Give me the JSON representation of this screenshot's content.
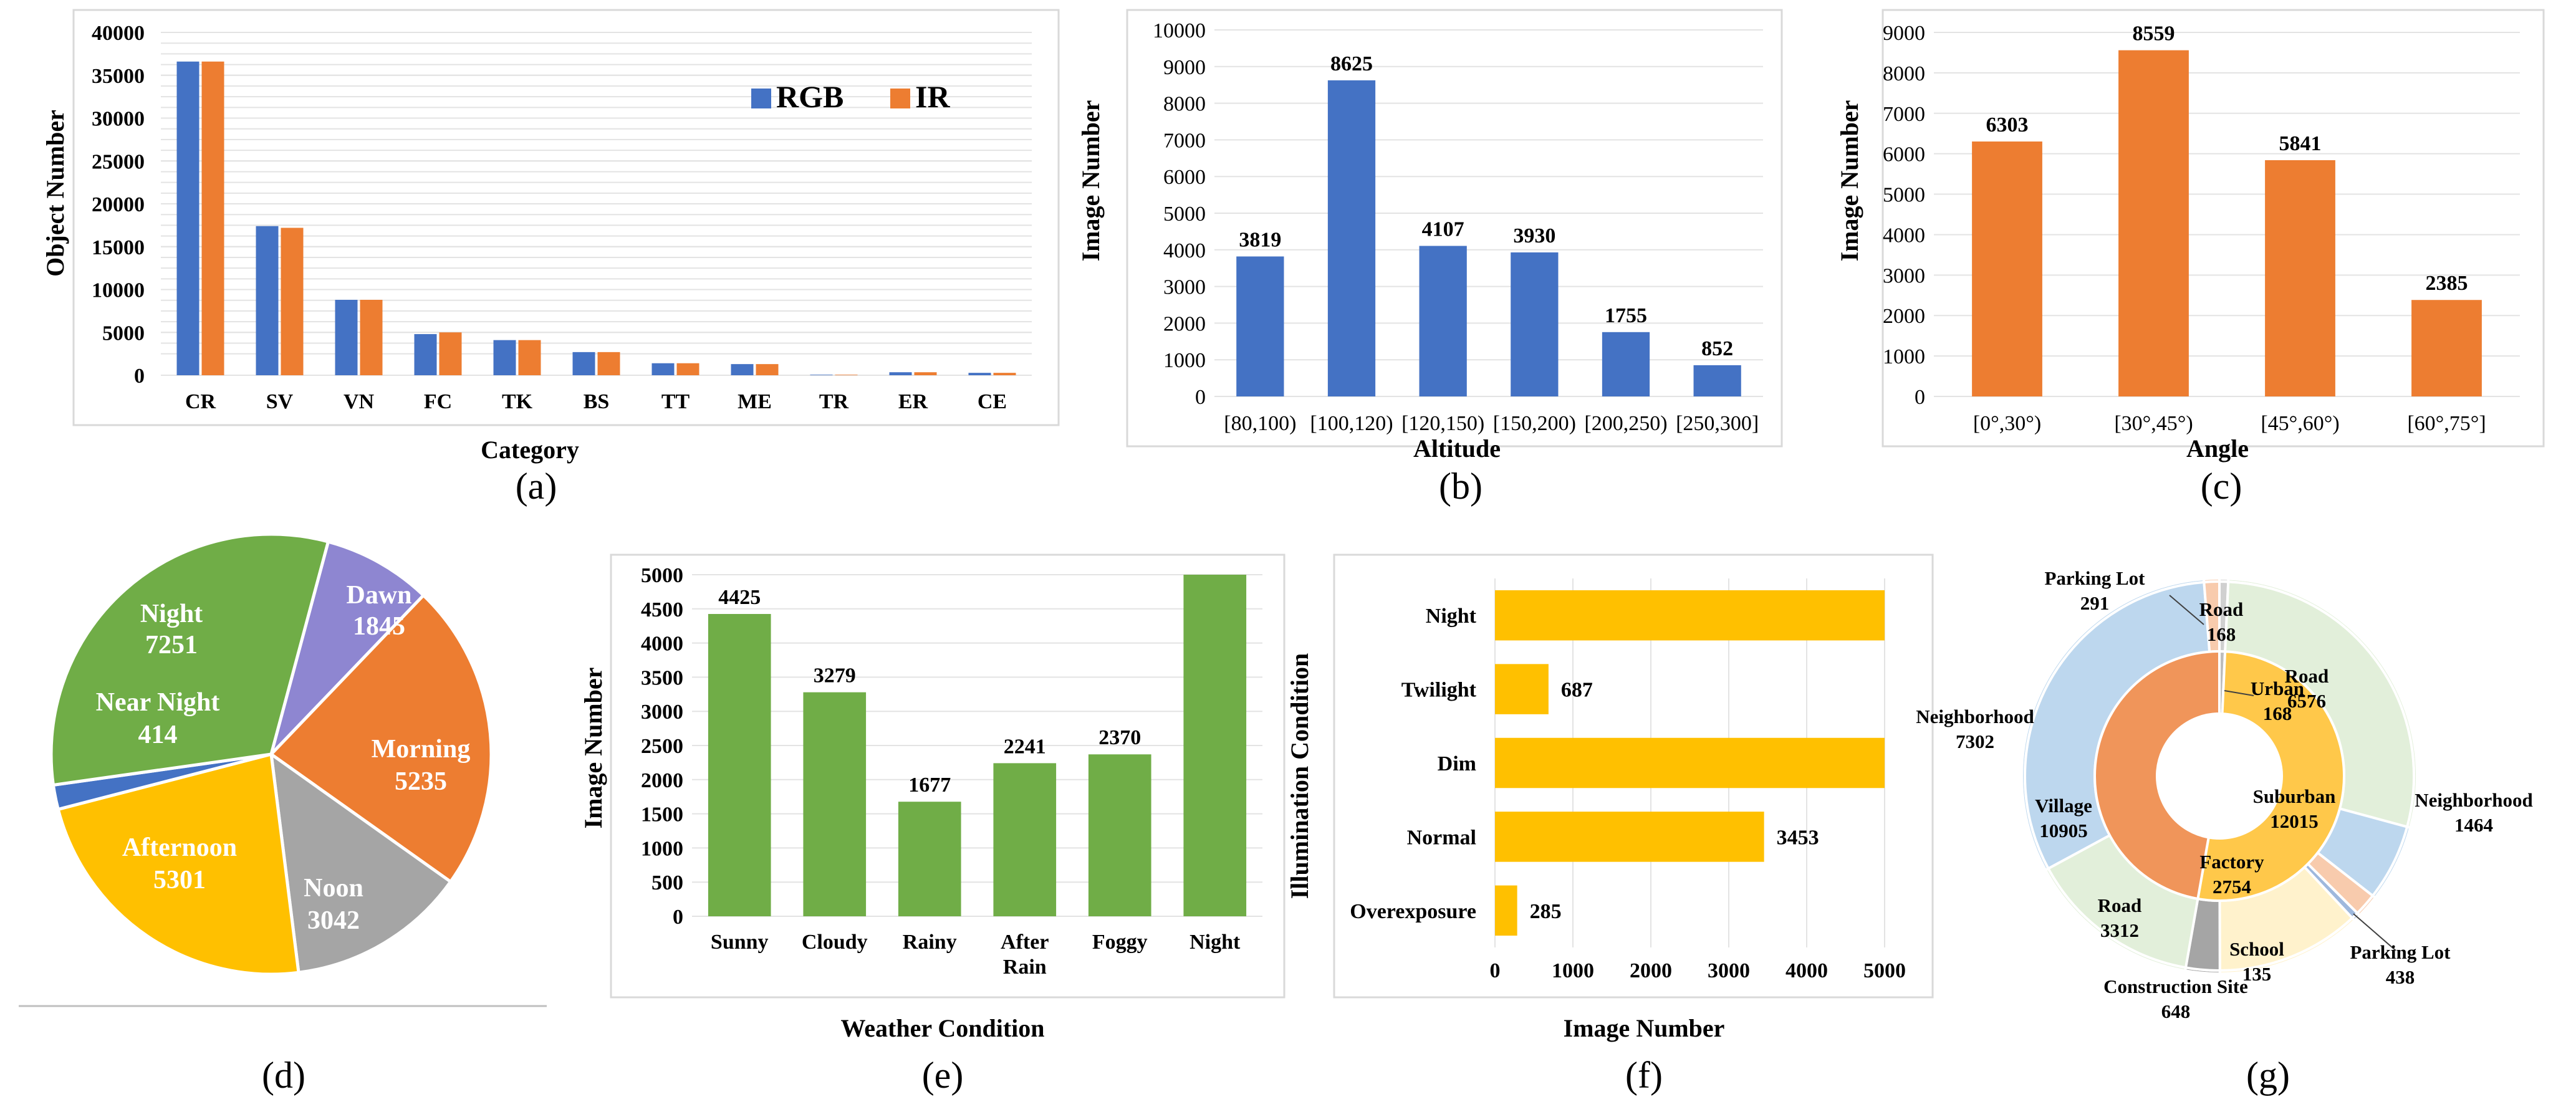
{
  "chart_data": [
    {
      "id": "a",
      "type": "bar",
      "caption": "(a)",
      "xlabel": "Category",
      "ylabel": "Object Number",
      "ylim": [
        0,
        40000
      ],
      "yticks": [
        "0",
        "5000",
        "10000",
        "15000",
        "20000",
        "25000",
        "30000",
        "35000",
        "40000"
      ],
      "categories": [
        "CR",
        "SV",
        "VN",
        "FC",
        "TK",
        "BS",
        "TT",
        "ME",
        "TR",
        "ER",
        "CE"
      ],
      "series": [
        {
          "name": "RGB",
          "color": "#4472c4",
          "values": [
            36600,
            17400,
            8800,
            4800,
            4100,
            2700,
            1400,
            1300,
            60,
            350,
            280
          ]
        },
        {
          "name": "IR",
          "color": "#ed7d31",
          "values": [
            36600,
            17200,
            8800,
            5000,
            4100,
            2700,
            1400,
            1300,
            60,
            350,
            280
          ]
        }
      ],
      "legend_position": "top-right"
    },
    {
      "id": "b",
      "type": "bar",
      "caption": "(b)",
      "xlabel": "Altitude",
      "ylabel": "Image Number",
      "ylim": [
        0,
        10000
      ],
      "yticks": [
        "0",
        "1000",
        "2000",
        "3000",
        "4000",
        "5000",
        "6000",
        "7000",
        "8000",
        "9000",
        "10000"
      ],
      "categories": [
        "[80,100)",
        "[100,120)",
        "[120,150)",
        "[150,200)",
        "[200,250)",
        "[250,300]"
      ],
      "values": [
        3819,
        8625,
        4107,
        3930,
        1755,
        852
      ],
      "data_labels": [
        "3819",
        "8625",
        "4107",
        "3930",
        "1755",
        "852"
      ],
      "color": "#4472c4"
    },
    {
      "id": "c",
      "type": "bar",
      "caption": "(c)",
      "xlabel": "Angle",
      "ylabel": "Image Number",
      "ylim": [
        0,
        9000
      ],
      "yticks": [
        "0",
        "1000",
        "2000",
        "3000",
        "4000",
        "5000",
        "6000",
        "7000",
        "8000",
        "9000"
      ],
      "categories": [
        "[0°,30°)",
        "[30°,45°)",
        "[45°,60°)",
        "[60°,75°]"
      ],
      "values": [
        6303,
        8559,
        5841,
        2385
      ],
      "data_labels": [
        "6303",
        "8559",
        "5841",
        "2385"
      ],
      "color": "#ed7d31"
    },
    {
      "id": "d",
      "type": "pie",
      "caption": "(d)",
      "slices": [
        {
          "name": "Dawn",
          "value": 1845,
          "label": "1845",
          "color": "#8e86d1"
        },
        {
          "name": "Morning",
          "value": 5235,
          "label": "5235",
          "color": "#ed7d31"
        },
        {
          "name": "Noon",
          "value": 3042,
          "label": "3042",
          "color": "#a5a5a5"
        },
        {
          "name": "Afternoon",
          "value": 5301,
          "label": "5301",
          "color": "#ffc000"
        },
        {
          "name": "Near Night",
          "value": 414,
          "label": "414",
          "color": "#4472c4"
        },
        {
          "name": "Night",
          "value": 7251,
          "label": "7251",
          "color": "#70ad47"
        }
      ]
    },
    {
      "id": "e",
      "type": "bar",
      "caption": "(e)",
      "xlabel": "Weather Condition",
      "ylabel": "Image Number",
      "ylim": [
        0,
        5000
      ],
      "yticks": [
        "0",
        "500",
        "1000",
        "1500",
        "2000",
        "2500",
        "3000",
        "3500",
        "4000",
        "4500",
        "5000"
      ],
      "categories": [
        "Sunny",
        "Cloudy",
        "Rainy",
        "After Rain",
        "Foggy",
        "Night"
      ],
      "values": [
        4425,
        3279,
        1677,
        2241,
        2370,
        5000
      ],
      "data_labels": [
        "4425",
        "3279",
        "1677",
        "2241",
        "2370",
        ""
      ],
      "color": "#70ad47"
    },
    {
      "id": "f",
      "type": "bar",
      "orientation": "horizontal",
      "caption": "(f)",
      "xlabel": "Image Number",
      "ylabel": "Illumination Condition",
      "xlim": [
        0,
        5000
      ],
      "xticks": [
        "0",
        "1000",
        "2000",
        "3000",
        "4000",
        "5000"
      ],
      "categories": [
        "Night",
        "Twilight",
        "Dim",
        "Normal",
        "Overexposure"
      ],
      "values": [
        5000,
        687,
        5000,
        3453,
        285
      ],
      "data_labels": [
        "",
        "687",
        "",
        "3453",
        "285"
      ],
      "color": "#ffc000"
    },
    {
      "id": "g",
      "type": "donut",
      "caption": "(g)",
      "inner": [
        {
          "name": "Urban",
          "value": 168,
          "label": "168",
          "color": "#bdbdbd"
        },
        {
          "name": "Suburban",
          "value": 12015,
          "label": "12015",
          "color": "#ffc84a"
        },
        {
          "name": "Village",
          "value": 10905,
          "label": "10905",
          "color": "#f0955a"
        }
      ],
      "outer": [
        {
          "name": "Road",
          "value": 168,
          "label": "168",
          "color": "#d0d0d0"
        },
        {
          "name": "Road",
          "value": 6576,
          "label": "6576",
          "color": "#e2efda"
        },
        {
          "name": "Neighborhood",
          "value": 1464,
          "label": "1464",
          "color": "#bdd7ee"
        },
        {
          "name": "Parking Lot",
          "value": 438,
          "label": "438",
          "color": "#f8cbad"
        },
        {
          "name": "School",
          "value": 135,
          "label": "135",
          "color": "#9eb8dd"
        },
        {
          "name": "Factory",
          "value": 2754,
          "label": "2754",
          "color": "#fff2cc"
        },
        {
          "name": "Construction Site",
          "value": 648,
          "label": "648",
          "color": "#a5a5a5"
        },
        {
          "name": "Road",
          "value": 3312,
          "label": "3312",
          "color": "#e2efda"
        },
        {
          "name": "Neighborhood",
          "value": 7302,
          "label": "7302",
          "color": "#bdd7ee"
        },
        {
          "name": "Parking Lot",
          "value": 291,
          "label": "291",
          "color": "#f8cbad"
        }
      ]
    }
  ]
}
